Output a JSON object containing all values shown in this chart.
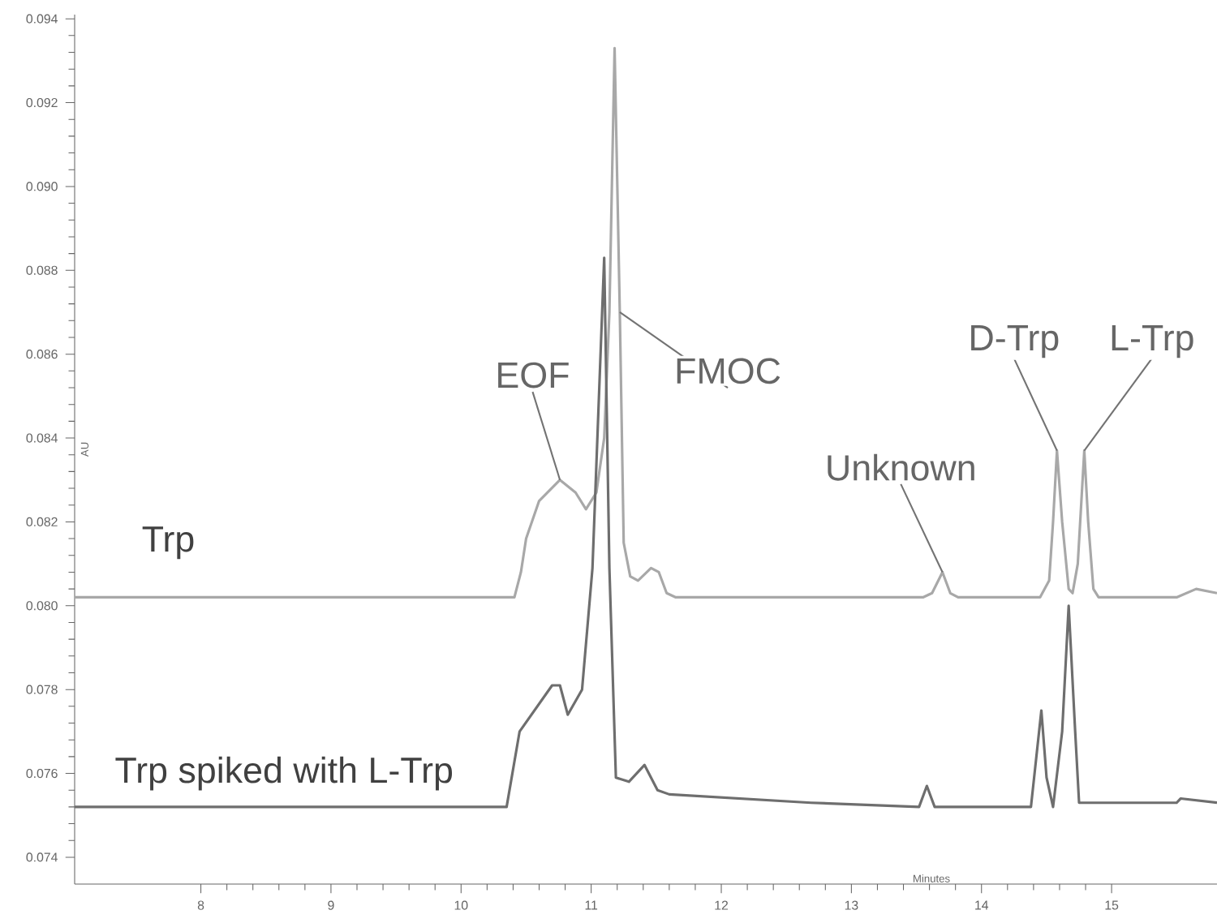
{
  "chart_data": {
    "type": "line",
    "xlabel": "Minutes",
    "ylabel": "AU",
    "xlim": [
      7.03,
      15.81
    ],
    "ylim": [
      0.07336,
      0.0941
    ],
    "xticks": [
      8,
      9,
      10,
      11,
      12,
      13,
      14,
      15
    ],
    "yticks": [
      0.074,
      0.076,
      0.078,
      {
        "value": 0.08,
        "label": "0.080"
      },
      0.082,
      0.084,
      0.086,
      0.088,
      {
        "value": 0.09,
        "label": "0.090"
      },
      0.092,
      0.094
    ],
    "grid": false,
    "legend": false,
    "marker": "none",
    "line_style": "solid",
    "series": [
      {
        "name": "Trp",
        "color": "#a8a8a8",
        "x": [
          7.03,
          10.41,
          10.46,
          10.5,
          10.6,
          10.76,
          10.88,
          10.96,
          11.04,
          11.1,
          11.14,
          11.18,
          11.22,
          11.25,
          11.3,
          11.36,
          11.46,
          11.52,
          11.58,
          11.65,
          13.55,
          13.62,
          13.7,
          13.76,
          13.82,
          14.45,
          14.52,
          14.55,
          14.58,
          14.62,
          14.67,
          14.7,
          14.74,
          14.79,
          14.82,
          14.86,
          14.9,
          15.5,
          15.65,
          15.81
        ],
        "values": [
          0.0802,
          0.0802,
          0.0808,
          0.0816,
          0.0825,
          0.083,
          0.0827,
          0.0823,
          0.0827,
          0.084,
          0.087,
          0.0933,
          0.087,
          0.0815,
          0.0807,
          0.0806,
          0.0809,
          0.0808,
          0.0803,
          0.0802,
          0.0802,
          0.0803,
          0.0808,
          0.0803,
          0.0802,
          0.0802,
          0.0806,
          0.082,
          0.0837,
          0.082,
          0.0804,
          0.0803,
          0.081,
          0.0837,
          0.082,
          0.0804,
          0.0802,
          0.0802,
          0.0804,
          0.0803
        ]
      },
      {
        "name": "Trp spiked with L-Trp",
        "color": "#6e6e6e",
        "x": [
          7.03,
          10.35,
          10.45,
          10.7,
          10.76,
          10.82,
          10.93,
          11.01,
          11.1,
          11.14,
          11.19,
          11.29,
          11.41,
          11.51,
          11.6,
          12.69,
          13.52,
          13.58,
          13.64,
          14.38,
          14.46,
          14.5,
          14.55,
          14.62,
          14.67,
          14.72,
          14.75,
          15.5,
          15.53,
          15.81
        ],
        "values": [
          0.0752,
          0.0752,
          0.077,
          0.0781,
          0.0781,
          0.0774,
          0.078,
          0.0809,
          0.0883,
          0.0809,
          0.0759,
          0.0758,
          0.0762,
          0.0756,
          0.0755,
          0.0753,
          0.0752,
          0.0757,
          0.0752,
          0.0752,
          0.0775,
          0.0759,
          0.0752,
          0.077,
          0.08,
          0.077,
          0.0753,
          0.0753,
          0.0754,
          0.0753
        ]
      }
    ],
    "annotations": [
      {
        "text": "EOF",
        "x": 10.76,
        "y": 0.083
      },
      {
        "text": "FMOC",
        "x": 11.22,
        "y": 0.087
      },
      {
        "text": "Unknown",
        "x": 13.7,
        "y": 0.0808
      },
      {
        "text": "D-Trp",
        "x": 14.58,
        "y": 0.0837
      },
      {
        "text": "L-Trp",
        "x": 14.79,
        "y": 0.0837
      }
    ]
  }
}
